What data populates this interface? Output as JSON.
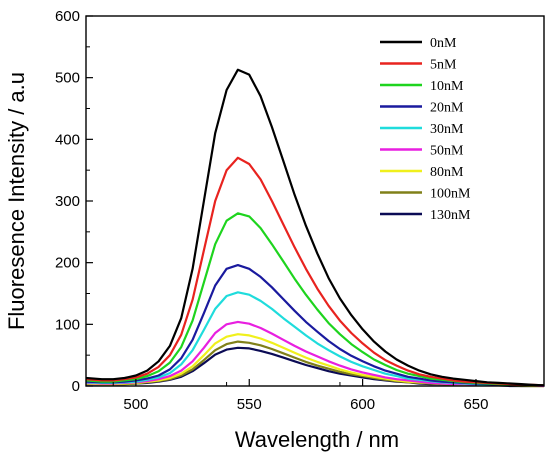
{
  "chart_data": {
    "type": "line",
    "title": "",
    "xlabel": "Wavelength / nm",
    "ylabel": "Fluoresence Intensity / a.u",
    "xlim": [
      478,
      680
    ],
    "ylim": [
      0,
      600
    ],
    "x_ticks": [
      500,
      550,
      600,
      650
    ],
    "y_ticks": [
      0,
      100,
      200,
      300,
      400,
      500,
      600
    ],
    "grid": false,
    "legend_position": "top-right",
    "x": [
      478,
      485,
      490,
      495,
      500,
      505,
      510,
      515,
      520,
      525,
      530,
      535,
      540,
      545,
      550,
      555,
      560,
      565,
      570,
      575,
      580,
      585,
      590,
      595,
      600,
      605,
      610,
      615,
      620,
      625,
      630,
      635,
      640,
      645,
      650,
      655,
      660,
      665,
      670,
      675,
      680
    ],
    "series": [
      {
        "name": "0nM",
        "color": "#000000",
        "values": [
          13,
          11,
          11,
          13,
          17,
          25,
          40,
          65,
          110,
          190,
          300,
          410,
          480,
          513,
          505,
          470,
          420,
          365,
          310,
          260,
          215,
          175,
          142,
          115,
          92,
          72,
          56,
          43,
          33,
          25,
          19,
          15,
          12,
          10,
          8,
          6,
          5,
          4,
          3,
          2,
          1
        ]
      },
      {
        "name": "5nM",
        "color": "#e8231f",
        "values": [
          11,
          9,
          9,
          11,
          14,
          20,
          31,
          50,
          83,
          140,
          220,
          300,
          350,
          370,
          360,
          335,
          300,
          262,
          225,
          190,
          158,
          130,
          106,
          86,
          69,
          54,
          42,
          33,
          25,
          19,
          15,
          12,
          9,
          7,
          6,
          5,
          4,
          3,
          2,
          2,
          1
        ]
      },
      {
        "name": "10nM",
        "color": "#1ed41e",
        "values": [
          9,
          7,
          7,
          9,
          11,
          16,
          24,
          38,
          63,
          106,
          168,
          230,
          268,
          280,
          275,
          256,
          230,
          202,
          174,
          148,
          124,
          102,
          84,
          68,
          55,
          43,
          34,
          26,
          20,
          16,
          12,
          10,
          8,
          6,
          5,
          4,
          3,
          2,
          2,
          1,
          1
        ]
      },
      {
        "name": "20nM",
        "color": "#1a1a9e",
        "values": [
          7,
          6,
          6,
          7,
          9,
          12,
          17,
          27,
          45,
          75,
          118,
          163,
          190,
          196,
          190,
          177,
          160,
          141,
          122,
          104,
          88,
          73,
          60,
          49,
          40,
          32,
          25,
          20,
          15,
          12,
          9,
          7,
          6,
          5,
          4,
          3,
          2,
          2,
          1,
          1,
          1
        ]
      },
      {
        "name": "30nM",
        "color": "#1fdcdc",
        "values": [
          6,
          5,
          5,
          6,
          7,
          10,
          14,
          21,
          35,
          58,
          91,
          125,
          146,
          152,
          148,
          138,
          125,
          110,
          96,
          82,
          69,
          58,
          48,
          39,
          32,
          26,
          20,
          16,
          12,
          10,
          8,
          6,
          5,
          4,
          3,
          2,
          2,
          1,
          1,
          1,
          1
        ]
      },
      {
        "name": "50nM",
        "color": "#e81fe0",
        "values": [
          5,
          4,
          4,
          5,
          6,
          8,
          11,
          16,
          25,
          40,
          62,
          86,
          100,
          104,
          101,
          94,
          85,
          75,
          65,
          56,
          48,
          40,
          33,
          27,
          22,
          18,
          14,
          11,
          9,
          7,
          5,
          4,
          3,
          3,
          2,
          2,
          1,
          1,
          1,
          1,
          0
        ]
      },
      {
        "name": "80nM",
        "color": "#f0f01c",
        "values": [
          4,
          3,
          3,
          4,
          5,
          7,
          9,
          13,
          20,
          32,
          50,
          69,
          80,
          84,
          82,
          77,
          70,
          62,
          54,
          46,
          39,
          33,
          27,
          22,
          18,
          15,
          12,
          9,
          7,
          6,
          5,
          4,
          3,
          2,
          2,
          1,
          1,
          1,
          1,
          0,
          0
        ]
      },
      {
        "name": "100nM",
        "color": "#808019",
        "values": [
          4,
          3,
          3,
          3,
          4,
          6,
          8,
          11,
          17,
          27,
          42,
          58,
          68,
          72,
          70,
          66,
          60,
          53,
          46,
          39,
          33,
          28,
          23,
          19,
          16,
          13,
          10,
          8,
          6,
          5,
          4,
          3,
          2,
          2,
          2,
          1,
          1,
          1,
          0,
          0,
          0
        ]
      },
      {
        "name": "130nM",
        "color": "#0b0b55",
        "values": [
          3,
          3,
          3,
          3,
          4,
          5,
          7,
          10,
          15,
          24,
          37,
          51,
          59,
          62,
          61,
          57,
          52,
          46,
          40,
          34,
          29,
          24,
          20,
          17,
          14,
          11,
          9,
          7,
          6,
          4,
          3,
          3,
          2,
          2,
          1,
          1,
          1,
          0,
          0,
          0,
          0
        ]
      }
    ]
  }
}
